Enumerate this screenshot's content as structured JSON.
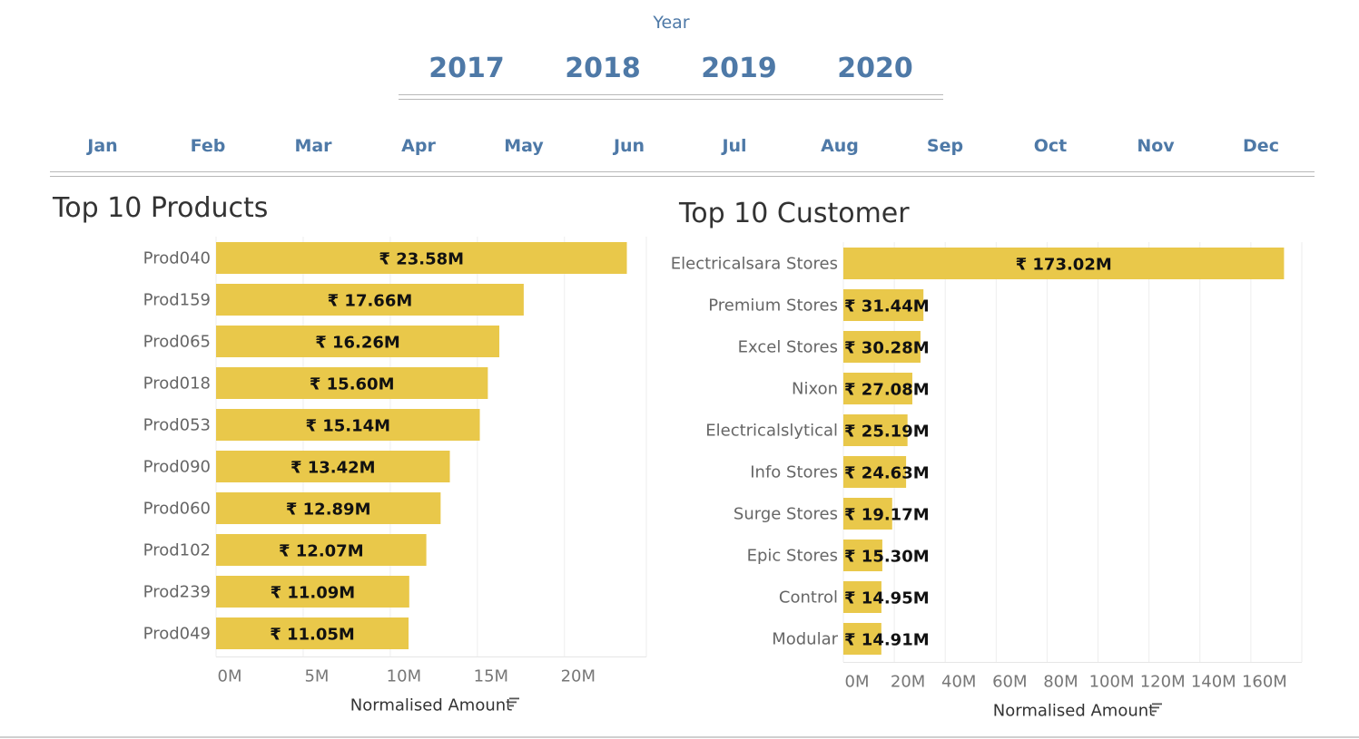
{
  "year_filter": {
    "label": "Year",
    "options": [
      "2017",
      "2018",
      "2019",
      "2020"
    ]
  },
  "month_filter": {
    "options": [
      "Jan",
      "Feb",
      "Mar",
      "Apr",
      "May",
      "Jun",
      "Jul",
      "Aug",
      "Sep",
      "Oct",
      "Nov",
      "Dec"
    ]
  },
  "colors": {
    "bar": "#e9c84a",
    "filter_text": "#4e79a7",
    "grid": "#eeeeee"
  },
  "sort_icon": "sort-descending-icon",
  "chart_data": [
    {
      "type": "bar",
      "orientation": "horizontal",
      "title": "Top 10 Products",
      "xlabel": "Normalised Amount",
      "categories": [
        "Prod040",
        "Prod159",
        "Prod065",
        "Prod018",
        "Prod053",
        "Prod090",
        "Prod060",
        "Prod102",
        "Prod239",
        "Prod049"
      ],
      "values": [
        23.58,
        17.66,
        16.26,
        15.6,
        15.14,
        13.42,
        12.89,
        12.07,
        11.09,
        11.05
      ],
      "value_labels": [
        "₹ 23.58M",
        "₹ 17.66M",
        "₹ 16.26M",
        "₹ 15.60M",
        "₹ 15.14M",
        "₹ 13.42M",
        "₹ 12.89M",
        "₹ 12.07M",
        "₹ 11.09M",
        "₹ 11.05M"
      ],
      "xticks": [
        0,
        5,
        10,
        15,
        20
      ],
      "xtick_labels": [
        "0M",
        "5M",
        "10M",
        "15M",
        "20M"
      ],
      "xlim": [
        0,
        24.7
      ],
      "grid": true
    },
    {
      "type": "bar",
      "orientation": "horizontal",
      "title": "Top 10 Customer",
      "xlabel": "Normalised Amount",
      "categories": [
        "Electricalsara Stores",
        "Premium Stores",
        "Excel Stores",
        "Nixon",
        "Electricalslytical",
        "Info Stores",
        "Surge Stores",
        "Epic Stores",
        "Control",
        "Modular"
      ],
      "values": [
        173.02,
        31.44,
        30.28,
        27.08,
        25.19,
        24.63,
        19.17,
        15.3,
        14.95,
        14.91
      ],
      "value_labels": [
        "₹ 173.02M",
        "₹ 31.44M",
        "₹ 30.28M",
        "₹ 27.08M",
        "₹ 25.19M",
        "₹ 24.63M",
        "₹ 19.17M",
        "₹ 15.30M",
        "₹ 14.95M",
        "₹ 14.91M"
      ],
      "xticks": [
        0,
        20,
        40,
        60,
        80,
        100,
        120,
        140,
        160
      ],
      "xtick_labels": [
        "0M",
        "20M",
        "40M",
        "60M",
        "80M",
        "100M",
        "120M",
        "140M",
        "160M"
      ],
      "xlim": [
        0,
        180
      ],
      "grid": true
    }
  ]
}
